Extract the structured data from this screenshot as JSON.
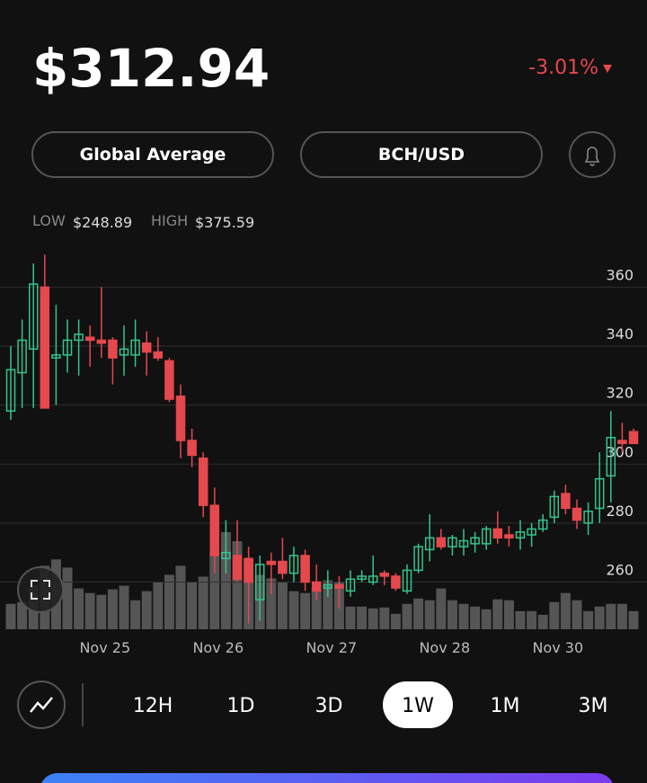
{
  "header": {
    "price": "$312.94",
    "change": "-3.01%"
  },
  "buttons": [
    "Global Average",
    "BCH/USD"
  ],
  "range_stats": {
    "low_label": "LOW",
    "low": "$248.89",
    "high_label": "HIGH",
    "high": "$375.59"
  },
  "chart_data": {
    "type": "candlestick",
    "categories": [
      null,
      null,
      null,
      null,
      null,
      null,
      null,
      null,
      "Nov 25",
      null,
      null,
      null,
      null,
      null,
      null,
      null,
      null,
      null,
      "Nov 26",
      null,
      null,
      null,
      null,
      null,
      null,
      null,
      null,
      null,
      "Nov 27",
      null,
      null,
      null,
      null,
      null,
      null,
      null,
      null,
      null,
      "Nov 28",
      null,
      null,
      null,
      null,
      null,
      null,
      null,
      null,
      null,
      "Nov 30",
      null,
      null,
      null,
      null,
      null,
      null,
      null
    ],
    "open": [
      318,
      331,
      339,
      360,
      336,
      337,
      342,
      343,
      342,
      342,
      337,
      337,
      341,
      338,
      335,
      323,
      308,
      302,
      286,
      268,
      269,
      268,
      254,
      267,
      267,
      263,
      269,
      260,
      258,
      259,
      257,
      261,
      260,
      263,
      262,
      257,
      264,
      271,
      275,
      272,
      272,
      273,
      273,
      278,
      276,
      275,
      276,
      278,
      282,
      290,
      285,
      280,
      285,
      296,
      308,
      311
    ],
    "high": [
      340,
      349,
      368,
      371,
      354,
      349,
      349,
      347,
      360,
      343,
      347,
      349,
      345,
      343,
      336,
      327,
      312,
      304,
      292,
      281,
      281,
      272,
      269,
      270,
      275,
      272,
      271,
      266,
      264,
      262,
      264,
      264,
      269,
      264,
      263,
      266,
      273,
      283,
      278,
      276,
      278,
      277,
      279,
      284,
      279,
      281,
      280,
      283,
      291,
      293,
      288,
      287,
      304,
      318,
      314,
      312
    ],
    "low": [
      315,
      319,
      319,
      319,
      320,
      331,
      330,
      333,
      336,
      327,
      330,
      333,
      330,
      335,
      321,
      302,
      299,
      282,
      263,
      263,
      260,
      246,
      247,
      256,
      261,
      260,
      257,
      254,
      255,
      251,
      255,
      260,
      259,
      259,
      257,
      256,
      263,
      267,
      271,
      269,
      269,
      270,
      271,
      273,
      272,
      271,
      272,
      277,
      280,
      283,
      278,
      276,
      280,
      287,
      304,
      307
    ],
    "close": [
      332,
      342,
      361,
      319,
      337,
      342,
      344,
      342,
      341,
      336,
      339,
      342,
      338,
      336,
      322,
      308,
      303,
      286,
      269,
      270,
      261,
      260,
      266,
      266,
      263,
      269,
      260,
      257,
      259,
      258,
      261,
      262,
      262,
      262,
      258,
      264,
      272,
      275,
      272,
      275,
      274,
      275,
      278,
      275,
      275,
      277,
      278,
      281,
      289,
      285,
      281,
      284,
      295,
      309,
      307,
      307
    ],
    "volumes": [
      28,
      30,
      48,
      70,
      77,
      68,
      45,
      40,
      38,
      44,
      48,
      32,
      42,
      52,
      60,
      70,
      52,
      58,
      85,
      107,
      97,
      78,
      60,
      56,
      52,
      42,
      40,
      45,
      54,
      52,
      25,
      25,
      23,
      24,
      17,
      28,
      34,
      32,
      45,
      32,
      28,
      25,
      22,
      33,
      32,
      20,
      20,
      16,
      30,
      40,
      32,
      20,
      25,
      28,
      28,
      20
    ],
    "up_color": "#35c48d",
    "down_color": "#e5484d",
    "volume_color": "#555555",
    "ylim": [
      244,
      372
    ],
    "yticks": [
      260,
      280,
      300,
      320,
      340,
      360
    ],
    "grid": true
  },
  "timeframes": {
    "options": [
      "12H",
      "1D",
      "3D",
      "1W",
      "1M",
      "3M"
    ],
    "selected": 3
  }
}
